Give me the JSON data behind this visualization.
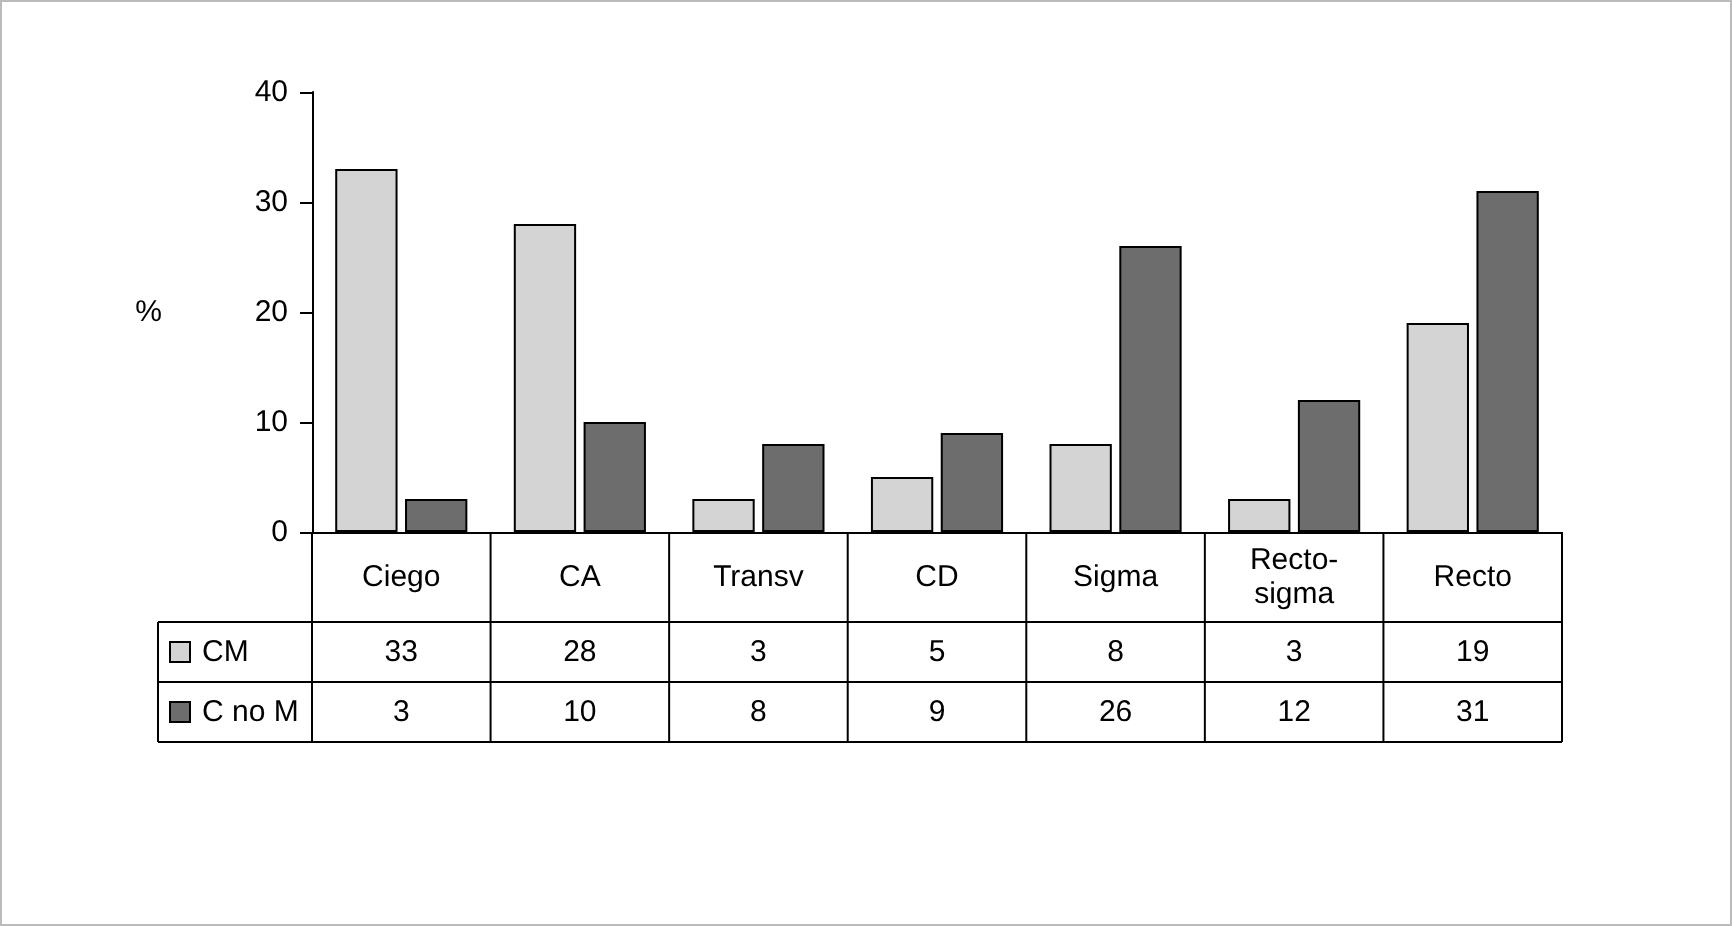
{
  "chart_data": {
    "type": "bar",
    "ylabel": "%",
    "categories": [
      "Ciego",
      "CA",
      "Transv",
      "CD",
      "Sigma",
      "Recto-sigma",
      "Recto"
    ],
    "series": [
      {
        "name": "CM",
        "color": "#d4d4d4",
        "values": [
          33,
          28,
          3,
          5,
          8,
          3,
          19
        ]
      },
      {
        "name": "C no M",
        "color": "#6d6d6d",
        "values": [
          3,
          10,
          8,
          9,
          26,
          12,
          31
        ]
      }
    ],
    "ylim": [
      0,
      40
    ],
    "yticks": [
      0,
      10,
      20,
      30,
      40
    ],
    "grid": false,
    "legend": "bottom left",
    "data_labels": true
  }
}
